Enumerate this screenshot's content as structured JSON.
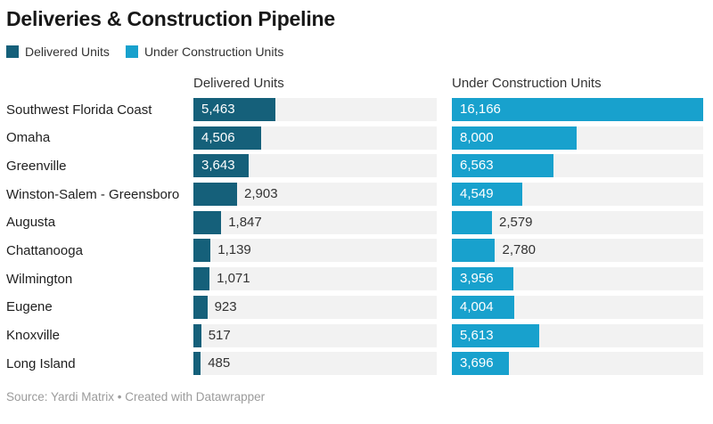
{
  "title": "Deliveries & Construction Pipeline",
  "legend": {
    "items": [
      {
        "label": "Delivered Units",
        "color": "#15607a"
      },
      {
        "label": "Under Construction Units",
        "color": "#18a1cd"
      }
    ]
  },
  "footer": {
    "text": "Source: Yardi Matrix • Created with Datawrapper"
  },
  "chart_data": {
    "type": "bar",
    "layout": "horizontal-split-columns",
    "title": "Deliveries & Construction Pipeline",
    "categories": [
      "Southwest Florida Coast",
      "Omaha",
      "Greenville",
      "Winston-Salem - Greensboro",
      "Augusta",
      "Chattanooga",
      "Wilmington",
      "Eugene",
      "Knoxville",
      "Long Island"
    ],
    "series": [
      {
        "name": "Delivered Units",
        "color": "#15607a",
        "values": [
          5463,
          4506,
          3643,
          2903,
          1847,
          1139,
          1071,
          923,
          517,
          485
        ],
        "labels": [
          "5,463",
          "4,506",
          "3,643",
          "2,903",
          "1,847",
          "1,139",
          "1,071",
          "923",
          "517",
          "485"
        ]
      },
      {
        "name": "Under Construction Units",
        "color": "#18a1cd",
        "values": [
          16166,
          8000,
          6563,
          4549,
          2579,
          2780,
          3956,
          4004,
          5613,
          3696
        ],
        "labels": [
          "16,166",
          "8,000",
          "6,563",
          "4,549",
          "2,579",
          "2,780",
          "3,956",
          "4,004",
          "5,613",
          "3,696"
        ]
      }
    ],
    "xlim": [
      0,
      16166
    ],
    "xmax": 16166,
    "grid": false,
    "legend_position": "top",
    "track_color": "#f2f2f2",
    "value_label_inside_color": "#ffffff",
    "value_label_outside_color": "#333333"
  }
}
